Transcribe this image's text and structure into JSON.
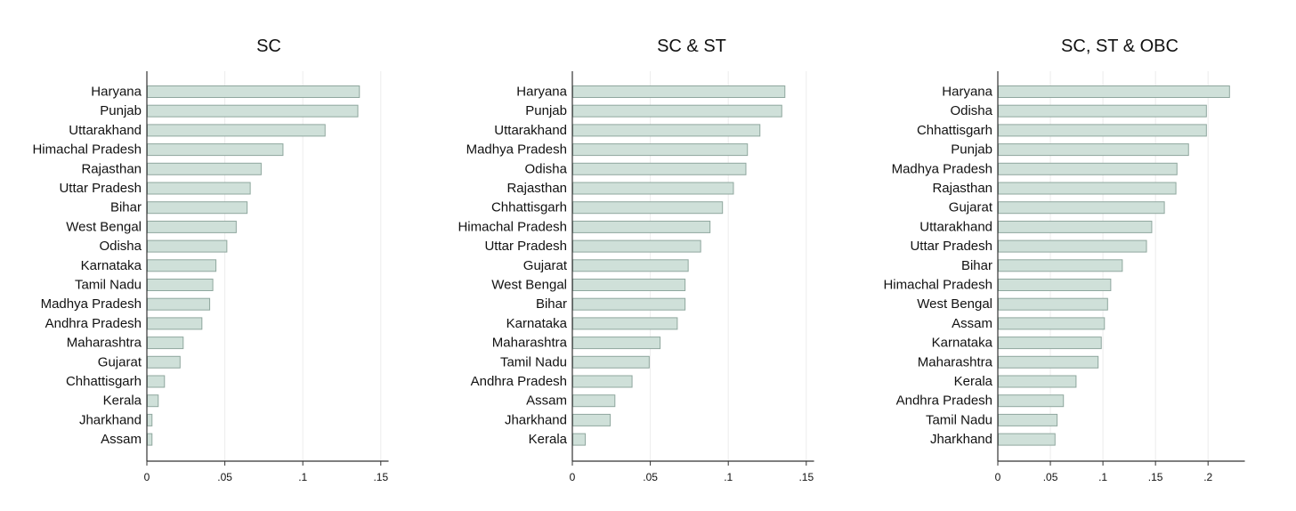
{
  "chart_data": [
    {
      "type": "bar",
      "orientation": "horizontal",
      "title": "SC",
      "xlim": [
        0,
        0.155
      ],
      "xticks": [
        0,
        0.05,
        0.1,
        0.15
      ],
      "xtick_labels": [
        "0",
        ".05",
        ".1",
        ".15"
      ],
      "grid": true,
      "categories": [
        "Haryana",
        "Punjab",
        "Uttarakhand",
        "Himachal Pradesh",
        "Rajasthan",
        "Uttar Pradesh",
        "Bihar",
        "West Bengal",
        "Odisha",
        "Karnataka",
        "Tamil Nadu",
        "Madhya Pradesh",
        "Andhra Pradesh",
        "Maharashtra",
        "Gujarat",
        "Chhattisgarh",
        "Kerala",
        "Jharkhand",
        "Assam"
      ],
      "values": [
        0.136,
        0.135,
        0.114,
        0.087,
        0.073,
        0.066,
        0.064,
        0.057,
        0.051,
        0.044,
        0.042,
        0.04,
        0.035,
        0.023,
        0.021,
        0.011,
        0.007,
        0.003,
        0.003
      ]
    },
    {
      "type": "bar",
      "orientation": "horizontal",
      "title": "SC & ST",
      "xlim": [
        0,
        0.155
      ],
      "xticks": [
        0,
        0.05,
        0.1,
        0.15
      ],
      "xtick_labels": [
        "0",
        ".05",
        ".1",
        ".15"
      ],
      "grid": true,
      "categories": [
        "Haryana",
        "Punjab",
        "Uttarakhand",
        "Madhya Pradesh",
        "Odisha",
        "Rajasthan",
        "Chhattisgarh",
        "Himachal Pradesh",
        "Uttar Pradesh",
        "Gujarat",
        "West Bengal",
        "Bihar",
        "Karnataka",
        "Maharashtra",
        "Tamil Nadu",
        "Andhra Pradesh",
        "Assam",
        "Jharkhand",
        "Kerala"
      ],
      "values": [
        0.136,
        0.134,
        0.12,
        0.112,
        0.111,
        0.103,
        0.096,
        0.088,
        0.082,
        0.074,
        0.072,
        0.072,
        0.067,
        0.056,
        0.049,
        0.038,
        0.027,
        0.024,
        0.008
      ]
    },
    {
      "type": "bar",
      "orientation": "horizontal",
      "title": "SC, ST & OBC",
      "xlim": [
        0,
        0.235
      ],
      "xticks": [
        0,
        0.05,
        0.1,
        0.15,
        0.2
      ],
      "xtick_labels": [
        "0",
        ".05",
        ".1",
        ".15",
        ".2"
      ],
      "grid": true,
      "categories": [
        "Haryana",
        "Odisha",
        "Chhattisgarh",
        "Punjab",
        "Madhya Pradesh",
        "Rajasthan",
        "Gujarat",
        "Uttarakhand",
        "Uttar Pradesh",
        "Bihar",
        "Himachal Pradesh",
        "West Bengal",
        "Assam",
        "Karnataka",
        "Maharashtra",
        "Kerala",
        "Andhra Pradesh",
        "Tamil Nadu",
        "Jharkhand"
      ],
      "values": [
        0.22,
        0.198,
        0.198,
        0.181,
        0.17,
        0.169,
        0.158,
        0.146,
        0.141,
        0.118,
        0.107,
        0.104,
        0.101,
        0.098,
        0.095,
        0.074,
        0.062,
        0.056,
        0.054
      ]
    }
  ],
  "colors": {
    "bar_fill": "#cfe0d9",
    "bar_stroke": "#8fa79e",
    "axis": "#333333",
    "grid": "#ececec"
  }
}
